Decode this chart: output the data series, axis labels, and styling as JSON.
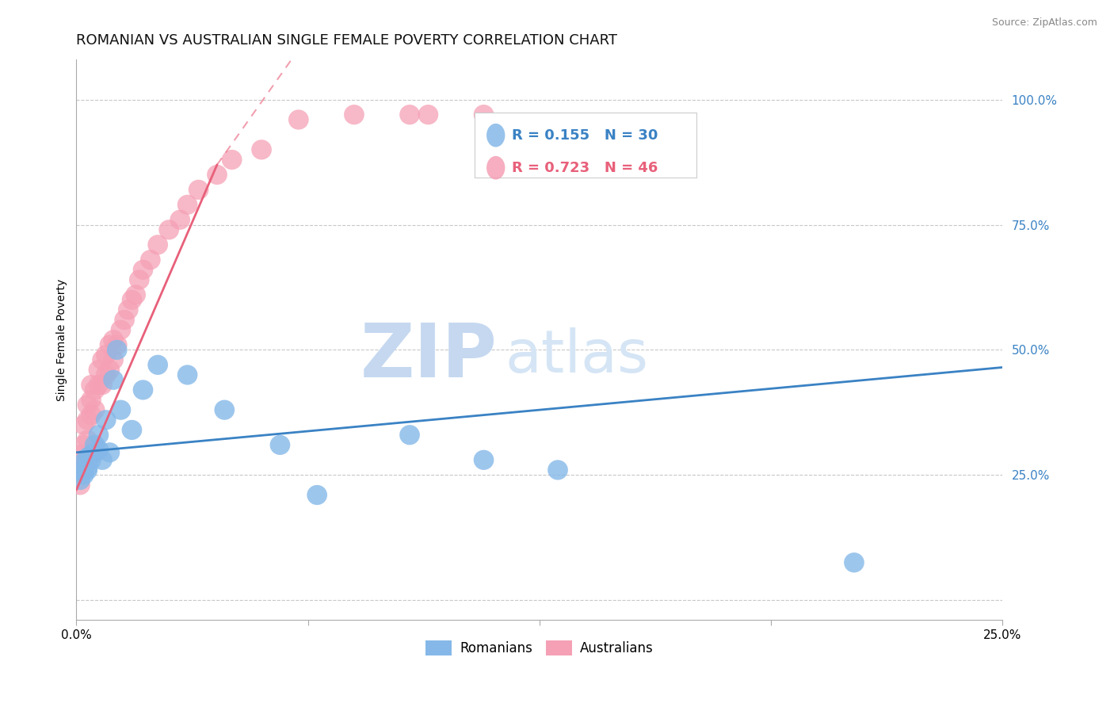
{
  "title": "ROMANIAN VS AUSTRALIAN SINGLE FEMALE POVERTY CORRELATION CHART",
  "source": "Source: ZipAtlas.com",
  "ylabel": "Single Female Poverty",
  "xlim": [
    0.0,
    0.25
  ],
  "ylim": [
    -0.04,
    1.08
  ],
  "ytick_values": [
    0.0,
    0.25,
    0.5,
    0.75,
    1.0
  ],
  "ytick_labels": [
    "",
    "25.0%",
    "50.0%",
    "75.0%",
    "100.0%"
  ],
  "xtick_values": [
    0.0,
    0.0625,
    0.125,
    0.1875,
    0.25
  ],
  "xtick_labels": [
    "0.0%",
    "",
    "",
    "",
    "25.0%"
  ],
  "romanians_R": 0.155,
  "romanians_N": 30,
  "australians_R": 0.723,
  "australians_N": 46,
  "romanians_color": "#85b8e8",
  "australians_color": "#f5a0b5",
  "trendline_romanian_color": "#3a82c4",
  "trendline_australian_color": "#e8607a",
  "background_color": "#ffffff",
  "grid_color": "#c8c8c8",
  "watermark_zip_color": "#c5d8f0",
  "watermark_atlas_color": "#d5e5f5",
  "title_fontsize": 13,
  "axis_label_fontsize": 10,
  "tick_fontsize": 11,
  "legend_fontsize": 13,
  "romanians_x": [
    0.001,
    0.001,
    0.002,
    0.002,
    0.003,
    0.003,
    0.003,
    0.004,
    0.004,
    0.005,
    0.005,
    0.006,
    0.006,
    0.007,
    0.008,
    0.009,
    0.01,
    0.011,
    0.012,
    0.015,
    0.018,
    0.022,
    0.03,
    0.04,
    0.055,
    0.065,
    0.09,
    0.11,
    0.13,
    0.21
  ],
  "romanians_y": [
    0.24,
    0.26,
    0.25,
    0.275,
    0.265,
    0.285,
    0.26,
    0.29,
    0.28,
    0.295,
    0.31,
    0.3,
    0.33,
    0.28,
    0.36,
    0.295,
    0.44,
    0.5,
    0.38,
    0.34,
    0.42,
    0.47,
    0.45,
    0.38,
    0.31,
    0.21,
    0.33,
    0.28,
    0.26,
    0.075
  ],
  "australians_x": [
    0.001,
    0.001,
    0.001,
    0.002,
    0.002,
    0.002,
    0.003,
    0.003,
    0.003,
    0.004,
    0.004,
    0.004,
    0.005,
    0.005,
    0.006,
    0.006,
    0.007,
    0.007,
    0.008,
    0.008,
    0.009,
    0.009,
    0.01,
    0.01,
    0.011,
    0.012,
    0.013,
    0.014,
    0.015,
    0.016,
    0.017,
    0.018,
    0.02,
    0.022,
    0.025,
    0.028,
    0.03,
    0.033,
    0.038,
    0.042,
    0.05,
    0.06,
    0.075,
    0.09,
    0.11,
    0.095
  ],
  "australians_y": [
    0.23,
    0.26,
    0.29,
    0.28,
    0.31,
    0.35,
    0.32,
    0.36,
    0.39,
    0.37,
    0.4,
    0.43,
    0.38,
    0.42,
    0.43,
    0.46,
    0.43,
    0.48,
    0.45,
    0.49,
    0.46,
    0.51,
    0.48,
    0.52,
    0.51,
    0.54,
    0.56,
    0.58,
    0.6,
    0.61,
    0.64,
    0.66,
    0.68,
    0.71,
    0.74,
    0.76,
    0.79,
    0.82,
    0.85,
    0.88,
    0.9,
    0.96,
    0.97,
    0.97,
    0.97,
    0.97
  ],
  "rom_trend_x0": 0.0,
  "rom_trend_y0": 0.295,
  "rom_trend_x1": 0.25,
  "rom_trend_y1": 0.465,
  "aus_trend_solid_x0": 0.0,
  "aus_trend_solid_y0": 0.22,
  "aus_trend_solid_x1": 0.038,
  "aus_trend_solid_y1": 0.87,
  "aus_trend_dash_x0": 0.038,
  "aus_trend_dash_y0": 0.87,
  "aus_trend_dash_x1": 0.06,
  "aus_trend_dash_y1": 1.1
}
